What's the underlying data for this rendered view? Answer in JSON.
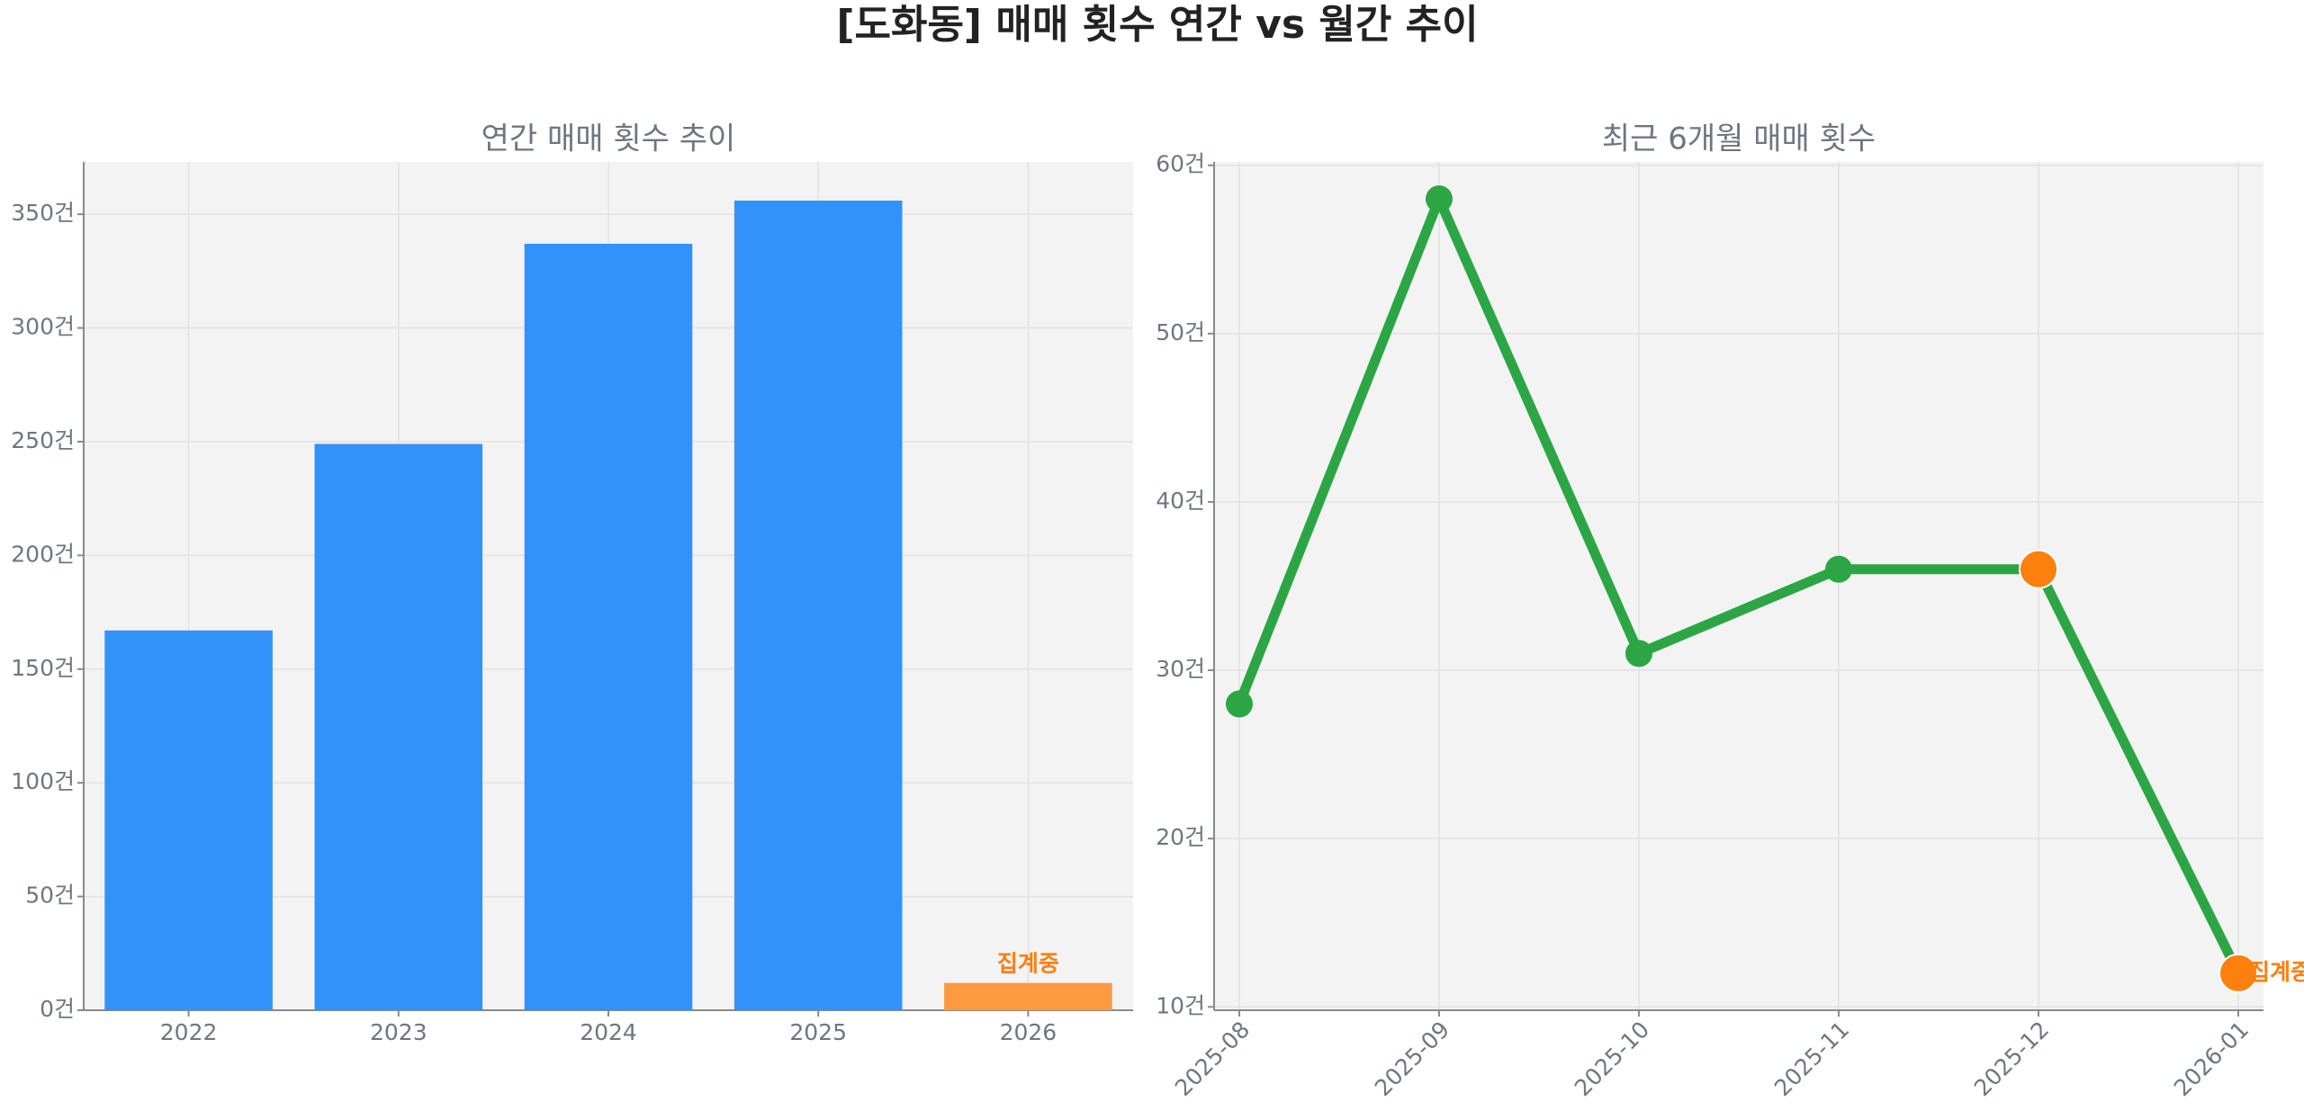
{
  "title": "[도화동] 매매 횟수 연간 vs 월간 추이",
  "chart_data": [
    {
      "type": "bar",
      "title": "연간 매매 횟수 추이",
      "categories": [
        "2022",
        "2023",
        "2024",
        "2025",
        "2026"
      ],
      "values": [
        167,
        249,
        337,
        356,
        12
      ],
      "colors": [
        "#3292fa",
        "#3292fa",
        "#3292fa",
        "#3292fa",
        "#fb9a40"
      ],
      "ylim": [
        0,
        373
      ],
      "yticks": [
        {
          "value": 0,
          "label": "0건"
        },
        {
          "value": 50,
          "label": "50건"
        },
        {
          "value": 100,
          "label": "100건"
        },
        {
          "value": 150,
          "label": "150건"
        },
        {
          "value": 200,
          "label": "200건"
        },
        {
          "value": 250,
          "label": "250건"
        },
        {
          "value": 300,
          "label": "300건"
        },
        {
          "value": 350,
          "label": "350건"
        }
      ],
      "grid": true,
      "annotation": {
        "text": "집계중",
        "x": "2026",
        "color": "#fd7f0e"
      }
    },
    {
      "type": "line",
      "title": "최근 6개월 매매 횟수",
      "categories": [
        "2025-08",
        "2025-09",
        "2025-10",
        "2025-11",
        "2025-12",
        "2026-01"
      ],
      "series": [
        {
          "color": "#2ca644",
          "values": [
            28,
            58,
            31,
            36,
            36,
            12
          ],
          "marker_colors": [
            "#2ca644",
            "#2ca644",
            "#2ca644",
            "#2ca644",
            "#fd7f0e",
            "#fd7f0e"
          ]
        }
      ],
      "ylim": [
        9.8,
        60.2
      ],
      "yticks": [
        {
          "value": 10,
          "label": "10건"
        },
        {
          "value": 20,
          "label": "20건"
        },
        {
          "value": 30,
          "label": "30건"
        },
        {
          "value": 40,
          "label": "40건"
        },
        {
          "value": 50,
          "label": "50건"
        },
        {
          "value": 60,
          "label": "60건"
        }
      ],
      "grid": true,
      "annotation": {
        "text": "집계중",
        "x": "2026-01",
        "color": "#fd7f0e"
      }
    }
  ]
}
